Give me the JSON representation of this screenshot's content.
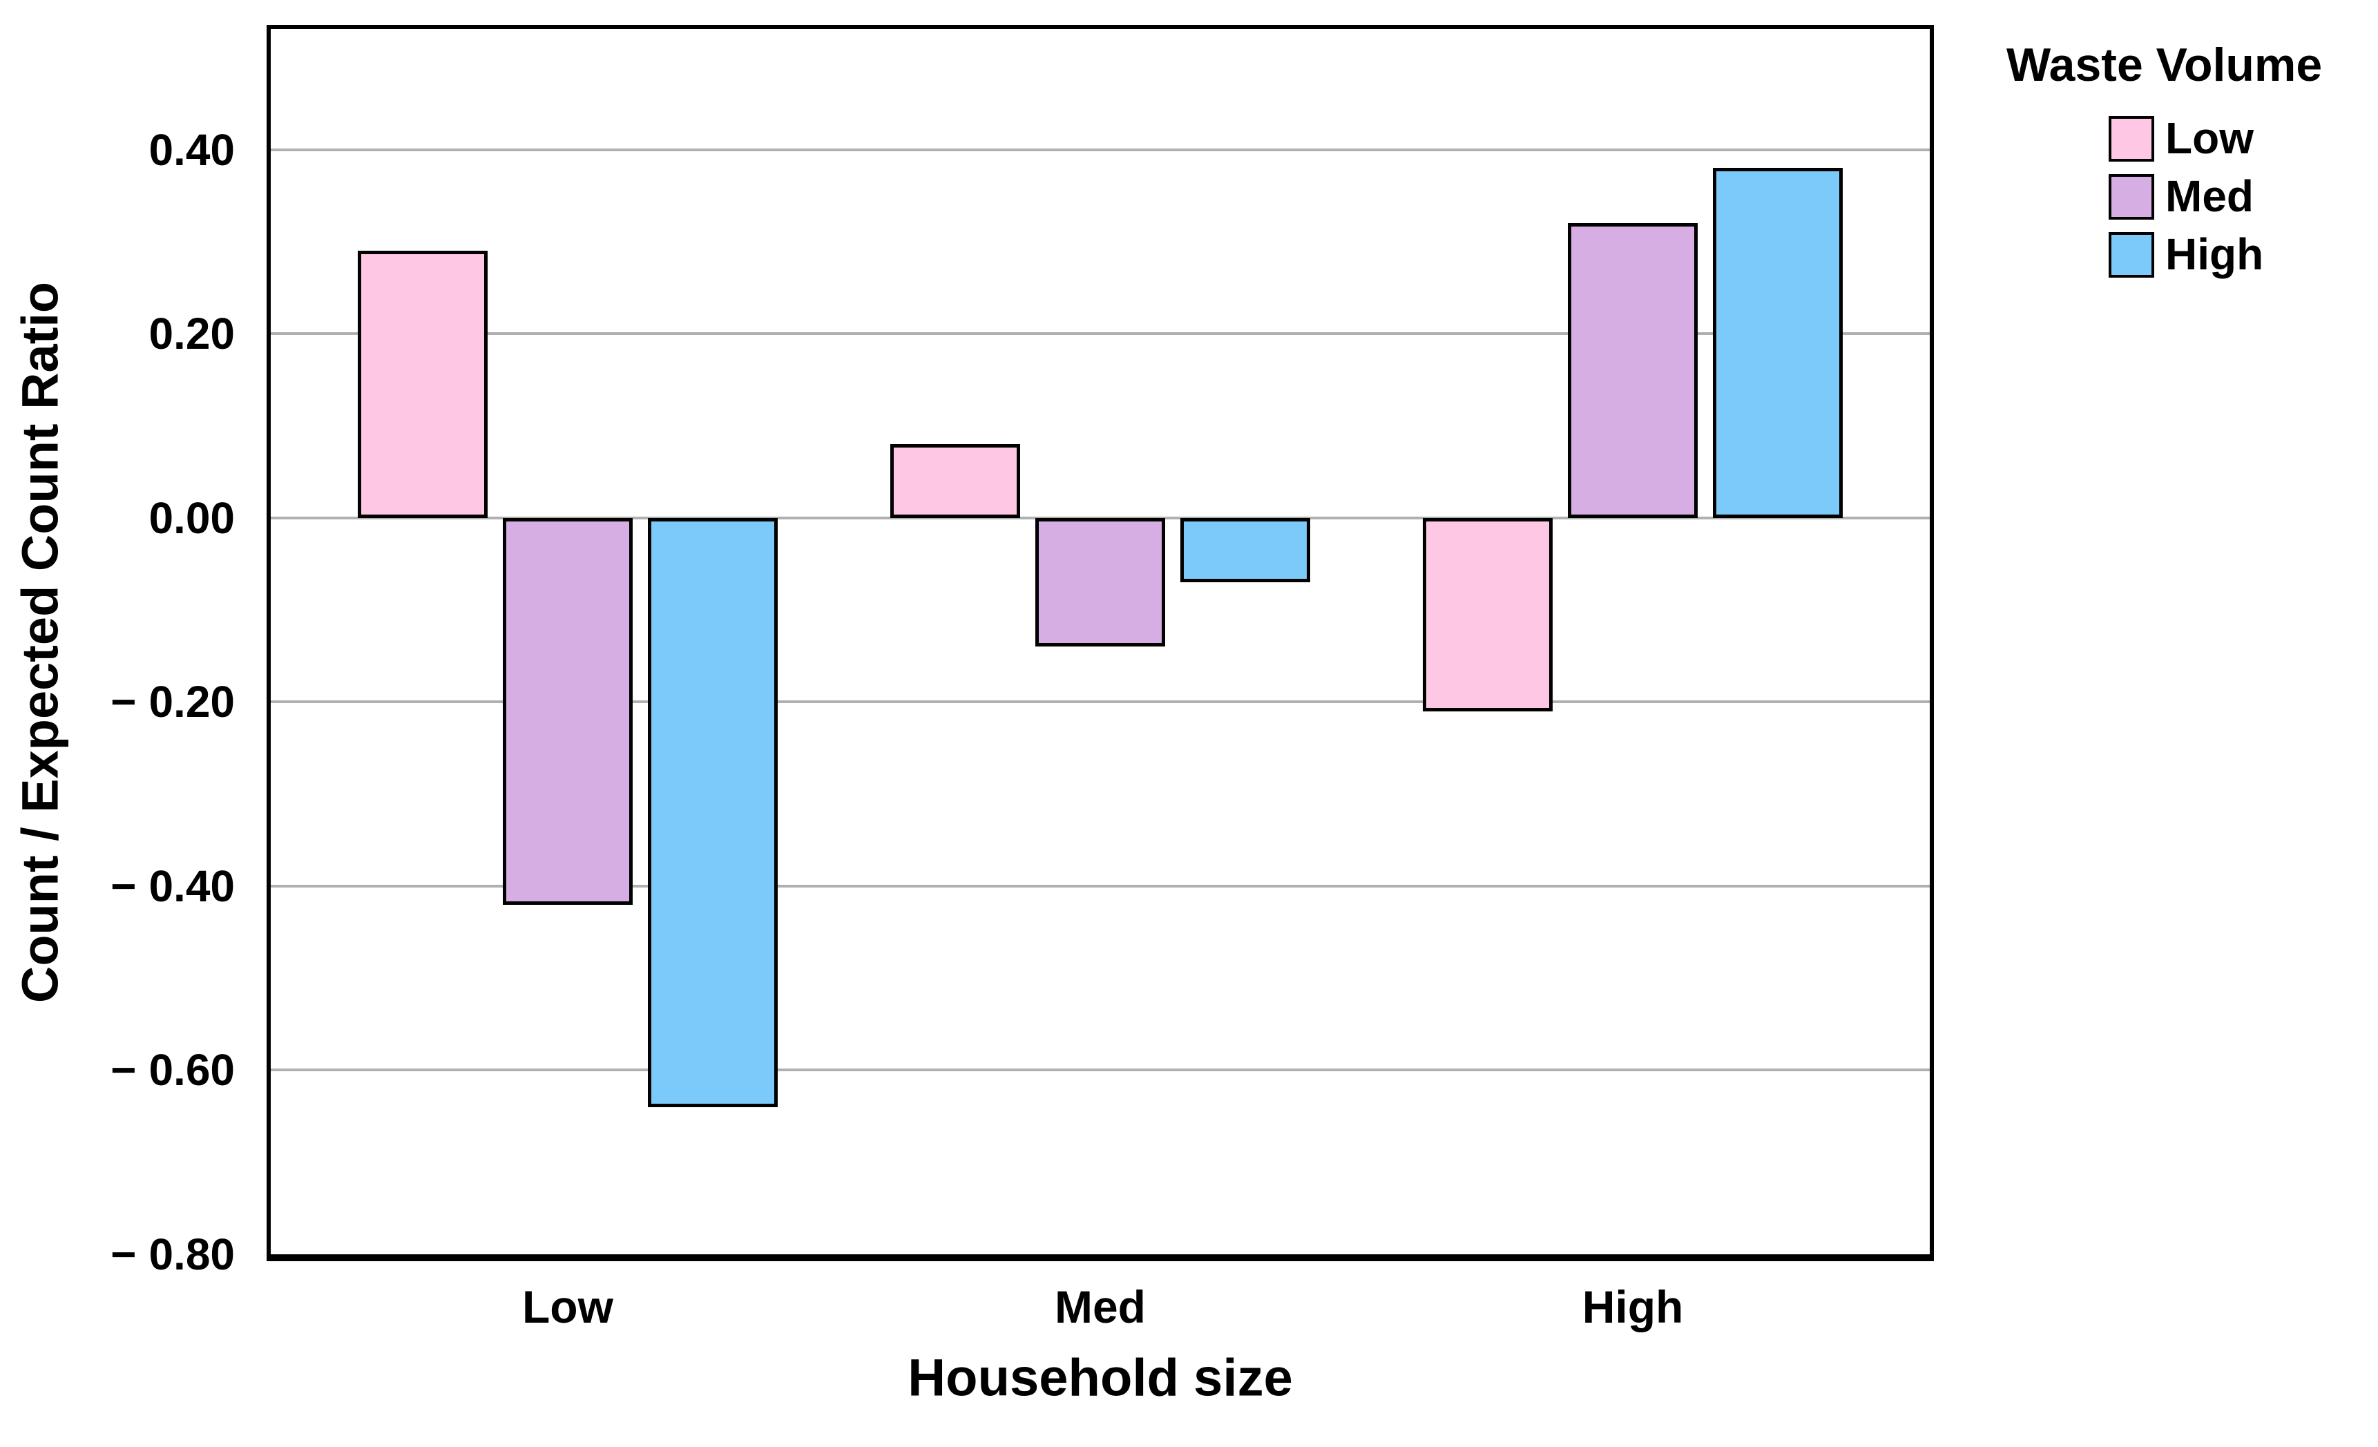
{
  "chart_data": {
    "type": "bar",
    "title": "",
    "categories": [
      "Low",
      "Med",
      "High"
    ],
    "series": [
      {
        "name": "Low",
        "color": "#FEC7E4",
        "values": [
          0.29,
          0.08,
          -0.21
        ]
      },
      {
        "name": "Med",
        "color": "#D6AEE4",
        "values": [
          -0.42,
          -0.14,
          0.32
        ]
      },
      {
        "name": "High",
        "color": "#7CCAF9",
        "values": [
          -0.64,
          -0.07,
          0.38
        ]
      }
    ],
    "xlabel": "Household size",
    "ylabel": "Count / Expected Count Ratio",
    "legend_title": "Waste Volume",
    "legend_position": "top-right",
    "ylim": [
      -0.8,
      0.531
    ],
    "yticks": [
      {
        "value": 0.4,
        "label": "0.40"
      },
      {
        "value": 0.2,
        "label": "0.20"
      },
      {
        "value": 0.0,
        "label": "0.00"
      },
      {
        "value": -0.2,
        "label": "− 0.20"
      },
      {
        "value": -0.4,
        "label": "− 0.40"
      },
      {
        "value": -0.6,
        "label": "− 0.60"
      },
      {
        "value": -0.8,
        "label": "− 0.80"
      }
    ],
    "grid": "horizontal",
    "gridline_color": "#b0b0b0",
    "frame_color": "#000000",
    "bar_outline_color": "#000000",
    "background": "#ffffff"
  }
}
